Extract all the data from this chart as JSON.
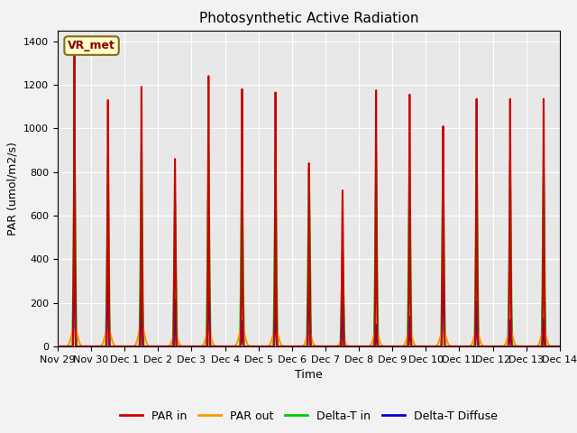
{
  "title": "Photosynthetic Active Radiation",
  "ylabel": "PAR (umol/m2/s)",
  "xlabel": "Time",
  "ylim": [
    0,
    1450
  ],
  "background_color": "#f2f2f2",
  "plot_bg_color": "#e8e8e8",
  "label_box": "VR_met",
  "legend_labels": [
    "PAR in",
    "PAR out",
    "Delta-T in",
    "Delta-T Diffuse"
  ],
  "legend_colors": [
    "#cc0000",
    "#ff9900",
    "#00cc00",
    "#0000dd"
  ],
  "series_colors": {
    "par_in": "#cc0000",
    "par_out": "#ff9900",
    "delta_t_in": "#00cc00",
    "delta_t_diffuse": "#0000dd"
  },
  "x_tick_labels": [
    "Nov 29",
    "Nov 30",
    "Dec 1",
    "Dec 2",
    "Dec 3",
    "Dec 4",
    "Dec 5",
    "Dec 6",
    "Dec 7",
    "Dec 8",
    "Dec 9",
    "Dec 10",
    "Dec 11",
    "Dec 12",
    "Dec 13",
    "Dec 14"
  ],
  "n_days": 15,
  "ppd": 48,
  "par_in_peaks": [
    1350,
    1130,
    1190,
    860,
    1240,
    1180,
    1165,
    840,
    715,
    1175,
    1155,
    1010,
    1135,
    1135,
    1135
  ],
  "par_out_peaks": [
    95,
    90,
    100,
    60,
    80,
    90,
    80,
    70,
    40,
    80,
    80,
    75,
    80,
    80,
    80
  ],
  "delta_t_in_peaks": [
    1000,
    870,
    910,
    660,
    920,
    915,
    910,
    820,
    440,
    900,
    900,
    870,
    900,
    845,
    840
  ],
  "delta_t_dif_peaks": [
    515,
    440,
    280,
    215,
    395,
    115,
    240,
    470,
    220,
    100,
    135,
    480,
    205,
    120,
    125
  ],
  "par_in_widths": [
    0.03,
    0.035,
    0.03,
    0.04,
    0.03,
    0.028,
    0.028,
    0.035,
    0.04,
    0.03,
    0.03,
    0.038,
    0.032,
    0.032,
    0.03
  ],
  "delta_t_in_widths": [
    0.055,
    0.055,
    0.055,
    0.06,
    0.055,
    0.055,
    0.055,
    0.06,
    0.06,
    0.055,
    0.055,
    0.055,
    0.055,
    0.055,
    0.055
  ],
  "delta_dif_widths": [
    0.04,
    0.04,
    0.038,
    0.038,
    0.04,
    0.03,
    0.038,
    0.04,
    0.04,
    0.03,
    0.032,
    0.04,
    0.035,
    0.03,
    0.032
  ],
  "par_out_widths": [
    0.08,
    0.08,
    0.08,
    0.07,
    0.07,
    0.08,
    0.08,
    0.07,
    0.06,
    0.07,
    0.07,
    0.08,
    0.07,
    0.07,
    0.07
  ]
}
